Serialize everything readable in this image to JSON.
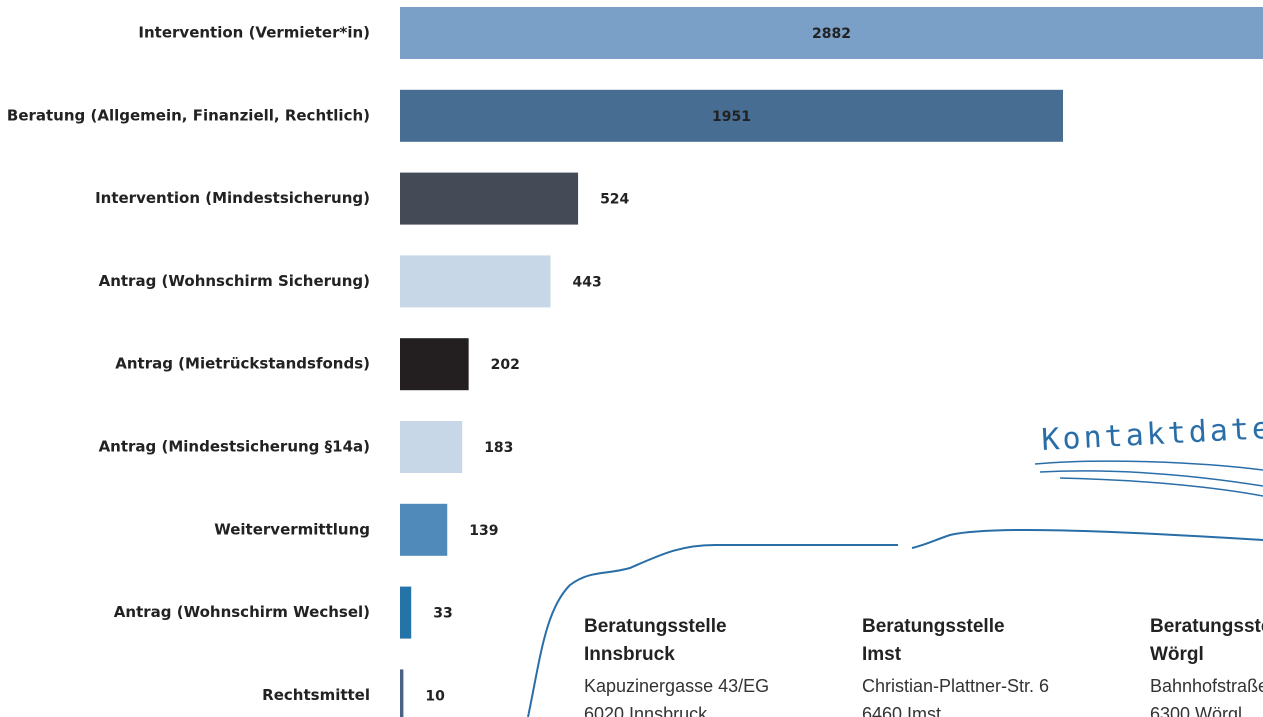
{
  "chart_data": {
    "type": "bar",
    "orientation": "horizontal",
    "categories": [
      "Intervention (Vermieter*in)",
      "Beratung (Allgemein, Finanziell, Rechtlich)",
      "Intervention (Mindestsicherung)",
      "Antrag (Wohnschirm Sicherung)",
      "Antrag (Mietrückstandsfonds)",
      "Antrag (Mindestsicherung §14a)",
      "Weitervermittlung",
      "Antrag (Wohnschirm Wechsel)",
      "Rechtsmittel"
    ],
    "values": [
      2882,
      1951,
      524,
      443,
      202,
      183,
      139,
      33,
      10
    ],
    "colors": [
      "#7aa0c8",
      "#476d92",
      "#444b56",
      "#c8d7e8",
      "#231f20",
      "#c8d7e8",
      "#4f8aba",
      "#2474a9",
      "#4a6285"
    ]
  },
  "contacts": {
    "heading": "Kontaktdaten",
    "cards": [
      {
        "title": [
          "Beratungsstelle",
          "Innsbruck"
        ],
        "lines": [
          "Kapuzinergasse 43/EG",
          "6020 Innsbruck"
        ]
      },
      {
        "title": [
          "Beratungsstelle",
          "Imst"
        ],
        "lines": [
          "Christian-Plattner-Str. 6",
          "6460 Imst"
        ]
      },
      {
        "title": [
          "Beratungsstelle",
          "Wörgl"
        ],
        "lines": [
          "Bahnhofstraße",
          "6300 Wörgl"
        ]
      }
    ]
  }
}
